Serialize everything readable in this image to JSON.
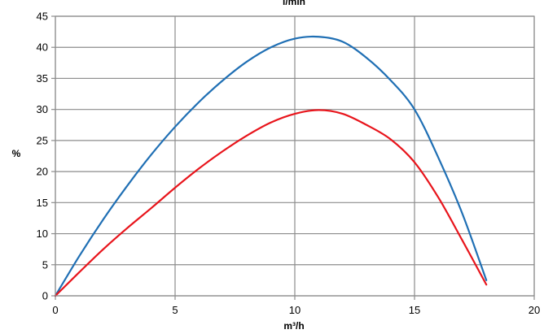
{
  "chart_data": {
    "type": "line",
    "title": "l/min",
    "xlabel": "m³/h",
    "ylabel": "%",
    "xlim": [
      0,
      20
    ],
    "ylim": [
      0,
      45
    ],
    "xticks": [
      "0",
      "5",
      "10",
      "15",
      "20"
    ],
    "yticks": [
      "0",
      "5",
      "10",
      "15",
      "20",
      "25",
      "30",
      "35",
      "40",
      "45"
    ],
    "grid": true,
    "legend": "none",
    "series": [
      {
        "color": "#1f6fb4",
        "x": [
          0,
          1,
          2,
          3,
          4,
          5,
          6,
          7,
          8,
          9,
          10,
          11,
          12,
          13,
          14,
          15,
          16,
          17,
          18
        ],
        "values": [
          0,
          6.4,
          12.3,
          17.7,
          22.7,
          27.2,
          31.2,
          34.7,
          37.7,
          40.0,
          41.4,
          41.7,
          40.9,
          38.3,
          34.7,
          30.0,
          22.2,
          13.2,
          2.5
        ]
      },
      {
        "color": "#e8141b",
        "x": [
          0,
          1,
          2,
          3,
          4,
          5,
          6,
          7,
          8,
          9,
          10,
          11,
          12,
          13,
          14,
          15,
          16,
          17,
          18
        ],
        "values": [
          0,
          3.8,
          7.5,
          10.9,
          14.1,
          17.4,
          20.5,
          23.3,
          25.8,
          27.9,
          29.3,
          29.9,
          29.3,
          27.5,
          25.2,
          21.5,
          15.8,
          8.9,
          1.8
        ]
      }
    ]
  }
}
